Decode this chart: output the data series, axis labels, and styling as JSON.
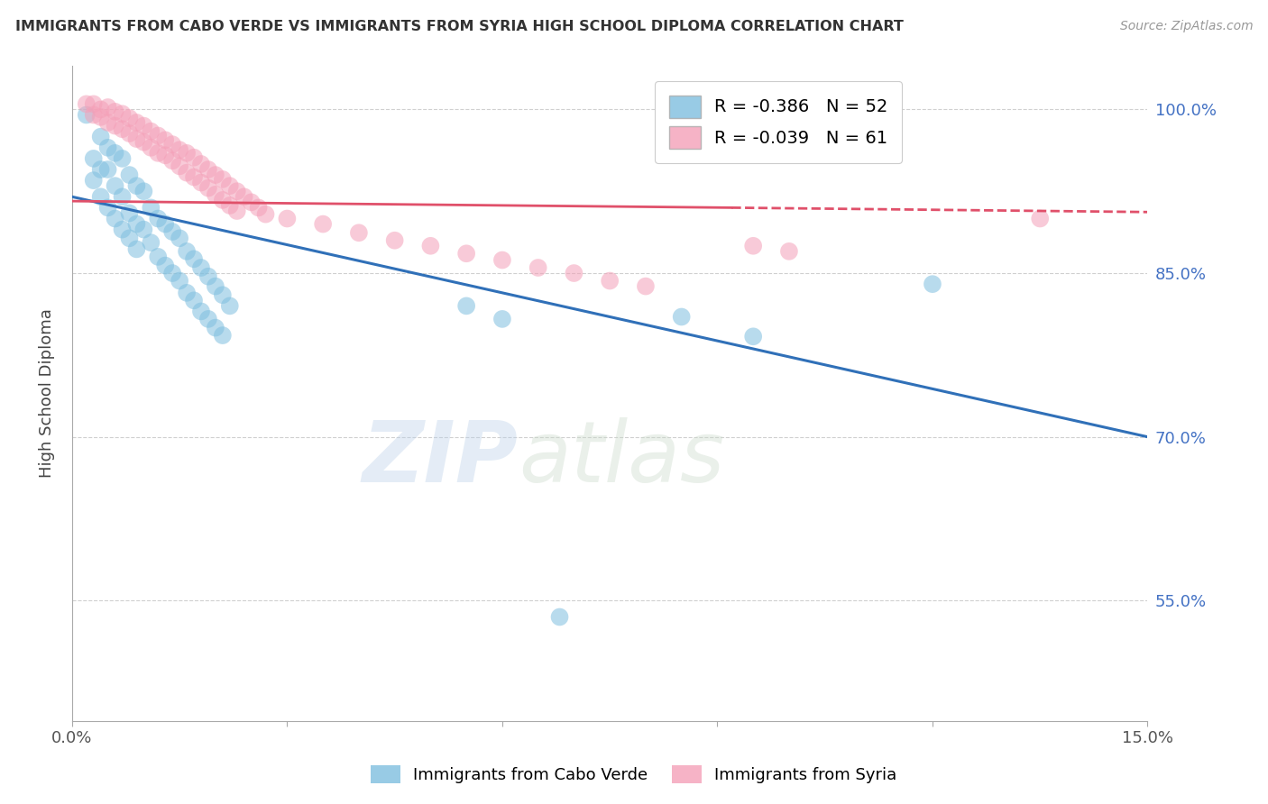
{
  "title": "IMMIGRANTS FROM CABO VERDE VS IMMIGRANTS FROM SYRIA HIGH SCHOOL DIPLOMA CORRELATION CHART",
  "source": "Source: ZipAtlas.com",
  "ylabel": "High School Diploma",
  "xlim": [
    0.0,
    0.15
  ],
  "ylim": [
    0.44,
    1.04
  ],
  "xticks": [
    0.0,
    0.03,
    0.06,
    0.09,
    0.12,
    0.15
  ],
  "yticks": [
    0.55,
    0.7,
    0.85,
    1.0
  ],
  "ytick_labels": [
    "55.0%",
    "70.0%",
    "85.0%",
    "100.0%"
  ],
  "xtick_labels": [
    "0.0%",
    "",
    "",
    "",
    "",
    "15.0%"
  ],
  "cabo_verde_R": "-0.386",
  "cabo_verde_N": "52",
  "syria_R": "-0.039",
  "syria_N": "61",
  "cabo_verde_color": "#7fbfdf",
  "syria_color": "#f4a0b8",
  "cabo_verde_line_color": "#3070b8",
  "syria_line_color": "#e0506a",
  "cabo_verde_scatter": [
    [
      0.002,
      0.995
    ],
    [
      0.004,
      0.975
    ],
    [
      0.005,
      0.965
    ],
    [
      0.003,
      0.955
    ],
    [
      0.006,
      0.96
    ],
    [
      0.004,
      0.945
    ],
    [
      0.007,
      0.955
    ],
    [
      0.005,
      0.945
    ],
    [
      0.003,
      0.935
    ],
    [
      0.008,
      0.94
    ],
    [
      0.006,
      0.93
    ],
    [
      0.009,
      0.93
    ],
    [
      0.004,
      0.92
    ],
    [
      0.007,
      0.92
    ],
    [
      0.01,
      0.925
    ],
    [
      0.005,
      0.91
    ],
    [
      0.011,
      0.91
    ],
    [
      0.008,
      0.905
    ],
    [
      0.006,
      0.9
    ],
    [
      0.012,
      0.9
    ],
    [
      0.009,
      0.895
    ],
    [
      0.013,
      0.895
    ],
    [
      0.007,
      0.89
    ],
    [
      0.01,
      0.89
    ],
    [
      0.014,
      0.888
    ],
    [
      0.008,
      0.882
    ],
    [
      0.015,
      0.882
    ],
    [
      0.011,
      0.878
    ],
    [
      0.009,
      0.872
    ],
    [
      0.016,
      0.87
    ],
    [
      0.012,
      0.865
    ],
    [
      0.017,
      0.863
    ],
    [
      0.013,
      0.857
    ],
    [
      0.018,
      0.855
    ],
    [
      0.014,
      0.85
    ],
    [
      0.019,
      0.847
    ],
    [
      0.015,
      0.843
    ],
    [
      0.02,
      0.838
    ],
    [
      0.016,
      0.832
    ],
    [
      0.021,
      0.83
    ],
    [
      0.017,
      0.825
    ],
    [
      0.022,
      0.82
    ],
    [
      0.018,
      0.815
    ],
    [
      0.019,
      0.808
    ],
    [
      0.02,
      0.8
    ],
    [
      0.021,
      0.793
    ],
    [
      0.055,
      0.82
    ],
    [
      0.06,
      0.808
    ],
    [
      0.085,
      0.81
    ],
    [
      0.095,
      0.792
    ],
    [
      0.12,
      0.84
    ],
    [
      0.068,
      0.535
    ]
  ],
  "syria_scatter": [
    [
      0.002,
      1.005
    ],
    [
      0.003,
      1.005
    ],
    [
      0.004,
      1.0
    ],
    [
      0.005,
      1.002
    ],
    [
      0.006,
      0.998
    ],
    [
      0.003,
      0.995
    ],
    [
      0.007,
      0.996
    ],
    [
      0.004,
      0.993
    ],
    [
      0.008,
      0.992
    ],
    [
      0.005,
      0.988
    ],
    [
      0.009,
      0.988
    ],
    [
      0.006,
      0.985
    ],
    [
      0.01,
      0.985
    ],
    [
      0.007,
      0.982
    ],
    [
      0.011,
      0.98
    ],
    [
      0.008,
      0.978
    ],
    [
      0.012,
      0.976
    ],
    [
      0.009,
      0.973
    ],
    [
      0.013,
      0.972
    ],
    [
      0.01,
      0.97
    ],
    [
      0.014,
      0.968
    ],
    [
      0.011,
      0.965
    ],
    [
      0.015,
      0.963
    ],
    [
      0.012,
      0.96
    ],
    [
      0.016,
      0.96
    ],
    [
      0.013,
      0.958
    ],
    [
      0.017,
      0.956
    ],
    [
      0.014,
      0.953
    ],
    [
      0.018,
      0.95
    ],
    [
      0.015,
      0.948
    ],
    [
      0.019,
      0.945
    ],
    [
      0.016,
      0.942
    ],
    [
      0.02,
      0.94
    ],
    [
      0.017,
      0.938
    ],
    [
      0.021,
      0.936
    ],
    [
      0.018,
      0.933
    ],
    [
      0.022,
      0.93
    ],
    [
      0.019,
      0.928
    ],
    [
      0.023,
      0.925
    ],
    [
      0.02,
      0.922
    ],
    [
      0.024,
      0.92
    ],
    [
      0.021,
      0.917
    ],
    [
      0.025,
      0.915
    ],
    [
      0.022,
      0.912
    ],
    [
      0.026,
      0.91
    ],
    [
      0.023,
      0.907
    ],
    [
      0.027,
      0.904
    ],
    [
      0.03,
      0.9
    ],
    [
      0.035,
      0.895
    ],
    [
      0.04,
      0.887
    ],
    [
      0.045,
      0.88
    ],
    [
      0.05,
      0.875
    ],
    [
      0.055,
      0.868
    ],
    [
      0.06,
      0.862
    ],
    [
      0.065,
      0.855
    ],
    [
      0.07,
      0.85
    ],
    [
      0.075,
      0.843
    ],
    [
      0.08,
      0.838
    ],
    [
      0.095,
      0.875
    ],
    [
      0.1,
      0.87
    ],
    [
      0.135,
      0.9
    ]
  ],
  "cabo_verde_trendline": [
    [
      0.0,
      0.92
    ],
    [
      0.15,
      0.7
    ]
  ],
  "syria_trendline_solid": [
    [
      0.0,
      0.916
    ],
    [
      0.092,
      0.91
    ]
  ],
  "syria_trendline_dashed": [
    [
      0.092,
      0.91
    ],
    [
      0.15,
      0.906
    ]
  ],
  "background_color": "#ffffff",
  "grid_color": "#d0d0d0",
  "legend_labels": [
    "Immigrants from Cabo Verde",
    "Immigrants from Syria"
  ],
  "watermark_zip": "ZIP",
  "watermark_atlas": "atlas"
}
